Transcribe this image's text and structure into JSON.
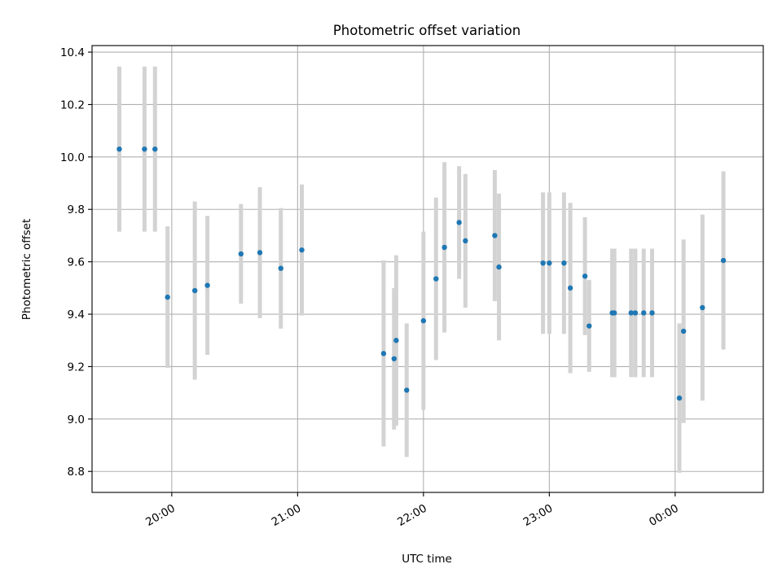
{
  "chart_data": {
    "type": "scatter",
    "title": "Photometric offset variation",
    "xlabel": "UTC time",
    "ylabel": "Photometric offset",
    "x_axis_type": "time",
    "xlim": [
      "19:22",
      "24:42"
    ],
    "ylim": [
      8.72,
      10.425
    ],
    "x_ticks": [
      {
        "value": "20:00",
        "label": "20:00"
      },
      {
        "value": "21:00",
        "label": "21:00"
      },
      {
        "value": "22:00",
        "label": "22:00"
      },
      {
        "value": "23:00",
        "label": "23:00"
      },
      {
        "value": "24:00",
        "label": "00:00"
      }
    ],
    "y_ticks": [
      8.8,
      9.0,
      9.2,
      9.4,
      9.6,
      9.8,
      10.0,
      10.2,
      10.4
    ],
    "grid": true,
    "colors": {
      "marker": "#1f77b4",
      "errorbar": "#d3d3d3",
      "grid": "#b0b0b0"
    },
    "points": [
      {
        "x": "19:35",
        "y": 10.03,
        "yerr": 0.315
      },
      {
        "x": "19:47",
        "y": 10.03,
        "yerr": 0.315
      },
      {
        "x": "19:52",
        "y": 10.03,
        "yerr": 0.315
      },
      {
        "x": "19:58",
        "y": 9.465,
        "yerr": 0.27
      },
      {
        "x": "20:11",
        "y": 9.49,
        "yerr": 0.34
      },
      {
        "x": "20:17",
        "y": 9.51,
        "yerr": 0.265
      },
      {
        "x": "20:33",
        "y": 9.63,
        "yerr": 0.19
      },
      {
        "x": "20:42",
        "y": 9.635,
        "yerr": 0.25
      },
      {
        "x": "20:52",
        "y": 9.575,
        "yerr": 0.23
      },
      {
        "x": "21:02",
        "y": 9.645,
        "yerr": 0.25
      },
      {
        "x": "21:41",
        "y": 9.25,
        "yerr": 0.355
      },
      {
        "x": "21:46",
        "y": 9.23,
        "yerr": 0.27
      },
      {
        "x": "21:47",
        "y": 9.3,
        "yerr": 0.325
      },
      {
        "x": "21:52",
        "y": 9.11,
        "yerr": 0.255
      },
      {
        "x": "22:00",
        "y": 9.375,
        "yerr": 0.34
      },
      {
        "x": "22:06",
        "y": 9.535,
        "yerr": 0.31
      },
      {
        "x": "22:10",
        "y": 9.655,
        "yerr": 0.325
      },
      {
        "x": "22:17",
        "y": 9.75,
        "yerr": 0.215
      },
      {
        "x": "22:20",
        "y": 9.68,
        "yerr": 0.255
      },
      {
        "x": "22:34",
        "y": 9.7,
        "yerr": 0.25
      },
      {
        "x": "22:36",
        "y": 9.58,
        "yerr": 0.28
      },
      {
        "x": "22:57",
        "y": 9.595,
        "yerr": 0.27
      },
      {
        "x": "23:00",
        "y": 9.595,
        "yerr": 0.27
      },
      {
        "x": "23:07",
        "y": 9.595,
        "yerr": 0.27
      },
      {
        "x": "23:10",
        "y": 9.5,
        "yerr": 0.325
      },
      {
        "x": "23:17",
        "y": 9.545,
        "yerr": 0.225
      },
      {
        "x": "23:19",
        "y": 9.355,
        "yerr": 0.175
      },
      {
        "x": "23:30",
        "y": 9.405,
        "yerr": 0.245
      },
      {
        "x": "23:31",
        "y": 9.405,
        "yerr": 0.245
      },
      {
        "x": "23:39",
        "y": 9.405,
        "yerr": 0.245
      },
      {
        "x": "23:41",
        "y": 9.405,
        "yerr": 0.245
      },
      {
        "x": "23:45",
        "y": 9.405,
        "yerr": 0.245
      },
      {
        "x": "23:49",
        "y": 9.405,
        "yerr": 0.245
      },
      {
        "x": "24:02",
        "y": 9.08,
        "yerr": 0.285
      },
      {
        "x": "24:04",
        "y": 9.335,
        "yerr": 0.35
      },
      {
        "x": "24:13",
        "y": 9.425,
        "yerr": 0.355
      },
      {
        "x": "24:23",
        "y": 9.605,
        "yerr": 0.34
      }
    ]
  }
}
